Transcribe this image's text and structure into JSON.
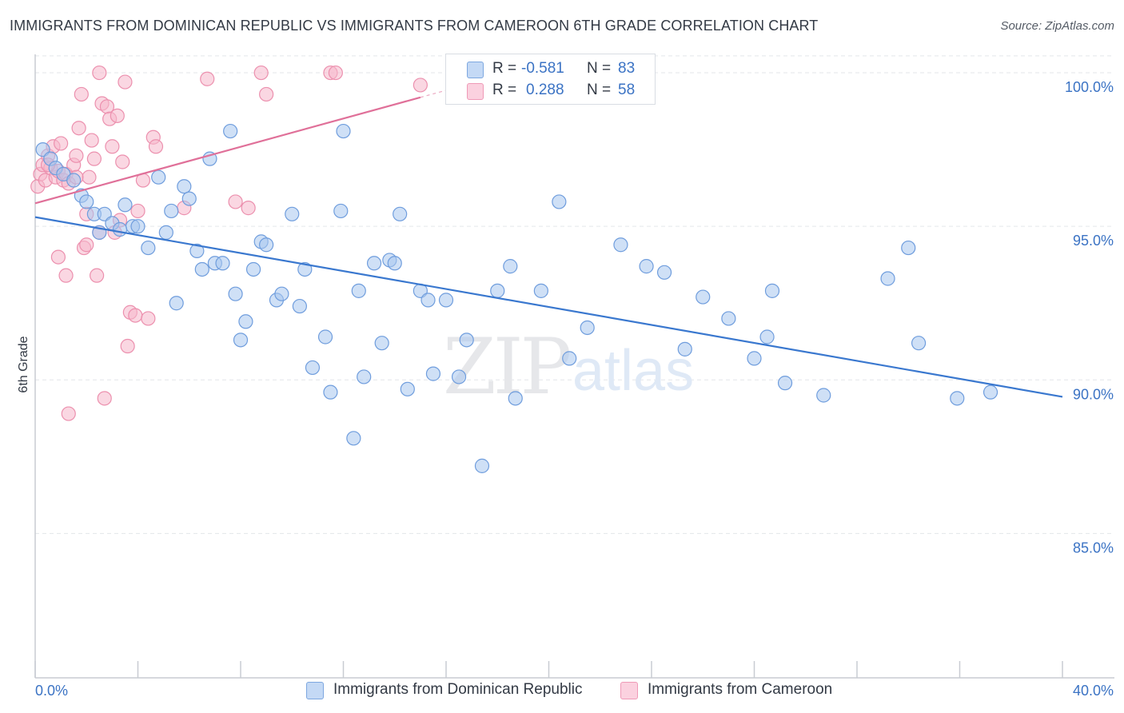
{
  "header": {
    "title": "IMMIGRANTS FROM DOMINICAN REPUBLIC VS IMMIGRANTS FROM CAMEROON 6TH GRADE CORRELATION CHART",
    "source": "Source: ZipAtlas.com"
  },
  "watermark": {
    "zip": "ZIP",
    "atlas": "atlas"
  },
  "legend": {
    "rows": [
      {
        "r_label": "R =",
        "r_value": "-0.581",
        "n_label": "N =",
        "n_value": "83",
        "color": "#a8c6ee"
      },
      {
        "r_label": "R =",
        "r_value": "0.288",
        "n_label": "N =",
        "n_value": "58",
        "color": "#f6b6cb"
      }
    ]
  },
  "bottom_legend": {
    "items": [
      {
        "label": "Immigrants from Dominican Republic",
        "color": "#a8c6ee"
      },
      {
        "label": "Immigrants from Cameroon",
        "color": "#f6b6cb"
      }
    ]
  },
  "colors": {
    "blue_fill": "#a8c6ee",
    "blue_stroke": "#6f9ddd",
    "blue_line": "#3a78cf",
    "pink_fill": "#f6b6cb",
    "pink_stroke": "#ec90ae",
    "pink_line": "#e07099",
    "grid": "#e3e6ea",
    "axis": "#c8ccd2",
    "tick_text": "#3b73c4"
  },
  "chart_data": {
    "type": "scatter",
    "title": "IMMIGRANTS FROM DOMINICAN REPUBLIC VS IMMIGRANTS FROM CAMEROON 6TH GRADE CORRELATION CHART",
    "xlabel": "",
    "ylabel": "6th Grade",
    "xlim": [
      0,
      40
    ],
    "ylim": [
      80.3,
      100.6
    ],
    "x_tick_labels": [
      "0.0%",
      "40.0%"
    ],
    "y_ticks": [
      85,
      90,
      95,
      100
    ],
    "y_tick_labels": [
      "85.0%",
      "90.0%",
      "95.0%",
      "100.0%"
    ],
    "grid": "horizontal dashed",
    "series": [
      {
        "name": "Immigrants from Dominican Republic",
        "R": -0.581,
        "N": 83,
        "trend": {
          "x": [
            0,
            40
          ],
          "y": [
            95.3,
            89.45
          ]
        },
        "points": [
          [
            0.3,
            97.5
          ],
          [
            0.6,
            97.2
          ],
          [
            0.8,
            96.9
          ],
          [
            1.1,
            96.7
          ],
          [
            1.5,
            96.5
          ],
          [
            1.8,
            96.0
          ],
          [
            2.0,
            95.8
          ],
          [
            2.3,
            95.4
          ],
          [
            2.5,
            94.8
          ],
          [
            2.7,
            95.4
          ],
          [
            3.0,
            95.1
          ],
          [
            3.5,
            95.7
          ],
          [
            3.8,
            95.0
          ],
          [
            4.0,
            95.0
          ],
          [
            4.4,
            94.3
          ],
          [
            4.8,
            96.6
          ],
          [
            5.1,
            94.8
          ],
          [
            5.3,
            95.5
          ],
          [
            5.5,
            92.5
          ],
          [
            5.8,
            96.3
          ],
          [
            6.0,
            95.9
          ],
          [
            6.3,
            94.2
          ],
          [
            6.5,
            93.6
          ],
          [
            6.8,
            97.2
          ],
          [
            7.0,
            93.8
          ],
          [
            7.3,
            93.8
          ],
          [
            7.6,
            98.1
          ],
          [
            7.8,
            92.8
          ],
          [
            8.0,
            91.3
          ],
          [
            8.2,
            91.9
          ],
          [
            8.5,
            93.6
          ],
          [
            8.8,
            94.5
          ],
          [
            9.0,
            94.4
          ],
          [
            9.4,
            92.6
          ],
          [
            9.6,
            92.8
          ],
          [
            10.0,
            95.4
          ],
          [
            10.3,
            92.4
          ],
          [
            10.5,
            93.6
          ],
          [
            10.8,
            90.4
          ],
          [
            11.3,
            91.4
          ],
          [
            11.5,
            89.6
          ],
          [
            11.9,
            95.5
          ],
          [
            12.0,
            98.1
          ],
          [
            12.4,
            88.1
          ],
          [
            12.6,
            92.9
          ],
          [
            12.8,
            90.1
          ],
          [
            13.2,
            93.8
          ],
          [
            13.5,
            91.2
          ],
          [
            13.8,
            93.9
          ],
          [
            14.2,
            95.4
          ],
          [
            14.5,
            89.7
          ],
          [
            15.0,
            92.9
          ],
          [
            15.3,
            92.6
          ],
          [
            15.5,
            90.2
          ],
          [
            16.0,
            92.6
          ],
          [
            16.5,
            90.1
          ],
          [
            16.8,
            91.3
          ],
          [
            17.4,
            87.2
          ],
          [
            18.0,
            92.9
          ],
          [
            18.5,
            93.7
          ],
          [
            18.7,
            89.4
          ],
          [
            19.7,
            92.9
          ],
          [
            20.4,
            95.8
          ],
          [
            20.8,
            90.7
          ],
          [
            21.5,
            91.7
          ],
          [
            22.8,
            94.4
          ],
          [
            23.8,
            93.7
          ],
          [
            24.5,
            93.5
          ],
          [
            25.3,
            91.0
          ],
          [
            26.0,
            92.7
          ],
          [
            27.0,
            92.0
          ],
          [
            28.0,
            90.7
          ],
          [
            28.5,
            91.4
          ],
          [
            28.7,
            92.9
          ],
          [
            29.2,
            89.9
          ],
          [
            30.7,
            89.5
          ],
          [
            33.2,
            93.3
          ],
          [
            34.0,
            94.3
          ],
          [
            34.4,
            91.2
          ],
          [
            35.9,
            89.4
          ],
          [
            37.2,
            89.6
          ],
          [
            3.3,
            94.9
          ],
          [
            14.0,
            93.8
          ]
        ]
      },
      {
        "name": "Immigrants from Cameroon",
        "R": 0.288,
        "N": 58,
        "trend": {
          "x": [
            0,
            15
          ],
          "y": [
            95.75,
            99.2
          ]
        },
        "trend_extension": {
          "x": [
            15,
            18.5
          ],
          "y": [
            99.2,
            100.0
          ]
        },
        "points": [
          [
            0.1,
            96.3
          ],
          [
            0.2,
            96.7
          ],
          [
            0.3,
            97.0
          ],
          [
            0.4,
            96.5
          ],
          [
            0.5,
            97.3
          ],
          [
            0.6,
            96.9
          ],
          [
            0.7,
            97.6
          ],
          [
            0.8,
            96.6
          ],
          [
            0.9,
            96.8
          ],
          [
            1.0,
            97.7
          ],
          [
            1.1,
            96.5
          ],
          [
            1.2,
            96.7
          ],
          [
            1.3,
            96.4
          ],
          [
            1.5,
            97.0
          ],
          [
            1.6,
            97.3
          ],
          [
            1.7,
            98.2
          ],
          [
            1.8,
            99.3
          ],
          [
            1.9,
            94.3
          ],
          [
            2.0,
            95.4
          ],
          [
            2.1,
            96.6
          ],
          [
            2.2,
            97.8
          ],
          [
            2.3,
            97.2
          ],
          [
            2.4,
            93.4
          ],
          [
            2.5,
            94.8
          ],
          [
            2.6,
            99.0
          ],
          [
            2.7,
            89.4
          ],
          [
            2.8,
            98.9
          ],
          [
            2.9,
            98.5
          ],
          [
            3.0,
            97.6
          ],
          [
            3.2,
            98.6
          ],
          [
            3.3,
            95.2
          ],
          [
            3.4,
            97.1
          ],
          [
            3.5,
            99.7
          ],
          [
            3.6,
            91.1
          ],
          [
            3.7,
            92.2
          ],
          [
            3.9,
            92.1
          ],
          [
            4.0,
            95.5
          ],
          [
            4.2,
            96.5
          ],
          [
            4.4,
            92.0
          ],
          [
            4.6,
            97.9
          ],
          [
            4.7,
            97.6
          ],
          [
            5.8,
            95.6
          ],
          [
            6.7,
            99.8
          ],
          [
            7.8,
            95.8
          ],
          [
            8.3,
            95.6
          ],
          [
            8.8,
            100.0
          ],
          [
            9.0,
            99.3
          ],
          [
            11.5,
            100.0
          ],
          [
            11.7,
            100.0
          ],
          [
            15.0,
            99.6
          ],
          [
            1.3,
            88.9
          ],
          [
            2.5,
            100.0
          ],
          [
            0.9,
            94.0
          ],
          [
            1.2,
            93.4
          ],
          [
            0.5,
            97.0
          ],
          [
            2.0,
            94.4
          ],
          [
            3.1,
            94.8
          ],
          [
            1.6,
            96.6
          ]
        ]
      }
    ]
  }
}
